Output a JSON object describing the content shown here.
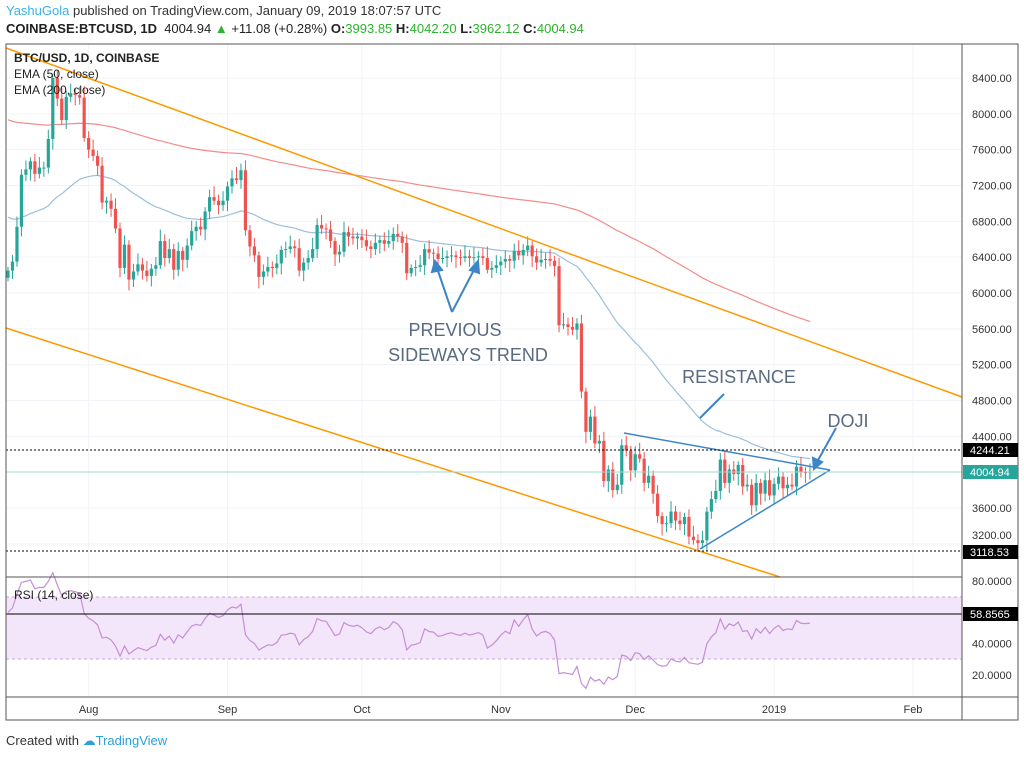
{
  "header": {
    "user": "YashuGola",
    "published": " published on TradingView.com, January 09, 2019 18:07:57 UTC",
    "symbol": "COINBASE:BTCUSD, 1D",
    "last": "4004.94",
    "change": "+11.08 (+0.28%)",
    "o_label": "O:",
    "o": "3993.85",
    "h_label": "H:",
    "h": "4042.20",
    "l_label": "L:",
    "l": "3962.12",
    "c_label": "C:",
    "c": "4004.94"
  },
  "legend": {
    "title": "BTC/USD, 1D, COINBASE",
    "ema50": "EMA (50, close)",
    "ema200": "EMA (200, close)",
    "rsi": "RSI (14, close)"
  },
  "annotations": {
    "sideways1": "PREVIOUS",
    "sideways2": "SIDEWAYS TREND",
    "resistance": "RESISTANCE",
    "doji": "DOJI"
  },
  "price_labels": {
    "resistance": "4244.21",
    "current": "4004.94",
    "support": "3118.53",
    "rsi": "58.8565"
  },
  "footer": {
    "created": "Created with",
    "brand": "TradingView"
  },
  "colors": {
    "up": "#26a69a",
    "down": "#ef5350",
    "ema50": "#9dbfdc",
    "ema200": "#f28b8b",
    "channel": "#ff9800",
    "drawing": "#3d85c6",
    "rsi": "#c58fd6"
  },
  "chart_data": {
    "type": "candlestick",
    "start_date": "2018-07-14",
    "closes": [
      6250,
      6350,
      6740,
      7320,
      7380,
      7470,
      7330,
      7400,
      7400,
      7720,
      8400,
      8170,
      7930,
      8190,
      8230,
      8210,
      8180,
      7730,
      7600,
      7530,
      7420,
      7010,
      7030,
      6940,
      6720,
      6280,
      6540,
      6150,
      6240,
      6320,
      6250,
      6190,
      6270,
      6310,
      6580,
      6390,
      6490,
      6260,
      6470,
      6370,
      6530,
      6690,
      6740,
      6710,
      6910,
      7070,
      7030,
      6980,
      7030,
      7190,
      7280,
      7260,
      7370,
      6700,
      6520,
      6420,
      6180,
      6240,
      6290,
      6280,
      6330,
      6480,
      6490,
      6520,
      6500,
      6250,
      6340,
      6390,
      6490,
      6760,
      6720,
      6710,
      6580,
      6430,
      6460,
      6680,
      6630,
      6610,
      6630,
      6590,
      6520,
      6490,
      6560,
      6590,
      6550,
      6580,
      6660,
      6630,
      6560,
      6220,
      6280,
      6290,
      6310,
      6490,
      6450,
      6440,
      6380,
      6390,
      6410,
      6420,
      6400,
      6390,
      6410,
      6390,
      6400,
      6410,
      6390,
      6260,
      6280,
      6310,
      6350,
      6380,
      6360,
      6470,
      6420,
      6480,
      6530,
      6410,
      6340,
      6370,
      6380,
      6360,
      6300,
      5640,
      5650,
      5620,
      5590,
      5660,
      4900,
      4450,
      4620,
      4320,
      4350,
      3900,
      4030,
      3800,
      3860,
      4300,
      4240,
      4020,
      4200,
      4150,
      3880,
      3960,
      3760,
      3510,
      3420,
      3430,
      3560,
      3460,
      3420,
      3500,
      3280,
      3240,
      3210,
      3240,
      3560,
      3700,
      3790,
      4140,
      3880,
      4030,
      3980,
      4080,
      3840,
      3860,
      3630,
      3880,
      3760,
      3910,
      3740,
      3870,
      3950,
      3820,
      3860,
      3840,
      4060,
      4000,
      3993.85,
      4004.94
    ],
    "price_ticks": [
      "8400.00",
      "8000.00",
      "7600.00",
      "7200.00",
      "6800.00",
      "6400.00",
      "6000.00",
      "5600.00",
      "5200.00",
      "4800.00",
      "4400.00",
      "3600.00",
      "3200.00"
    ],
    "rsi_ticks": [
      "80.0000",
      "40.0000",
      "20.0000"
    ],
    "time_ticks": [
      {
        "label": "Aug",
        "day": 18
      },
      {
        "label": "Sep",
        "day": 49
      },
      {
        "label": "Oct",
        "day": 79
      },
      {
        "label": "Nov",
        "day": 110
      },
      {
        "label": "Dec",
        "day": 140
      },
      {
        "label": "2019",
        "day": 171
      },
      {
        "label": "Feb",
        "day": 202
      }
    ],
    "indicators": [
      "EMA 50",
      "EMA 200",
      "RSI 14"
    ],
    "rsi_bands": [
      30,
      70
    ],
    "levels": [
      4244.21,
      3118.53,
      4004.94
    ]
  }
}
